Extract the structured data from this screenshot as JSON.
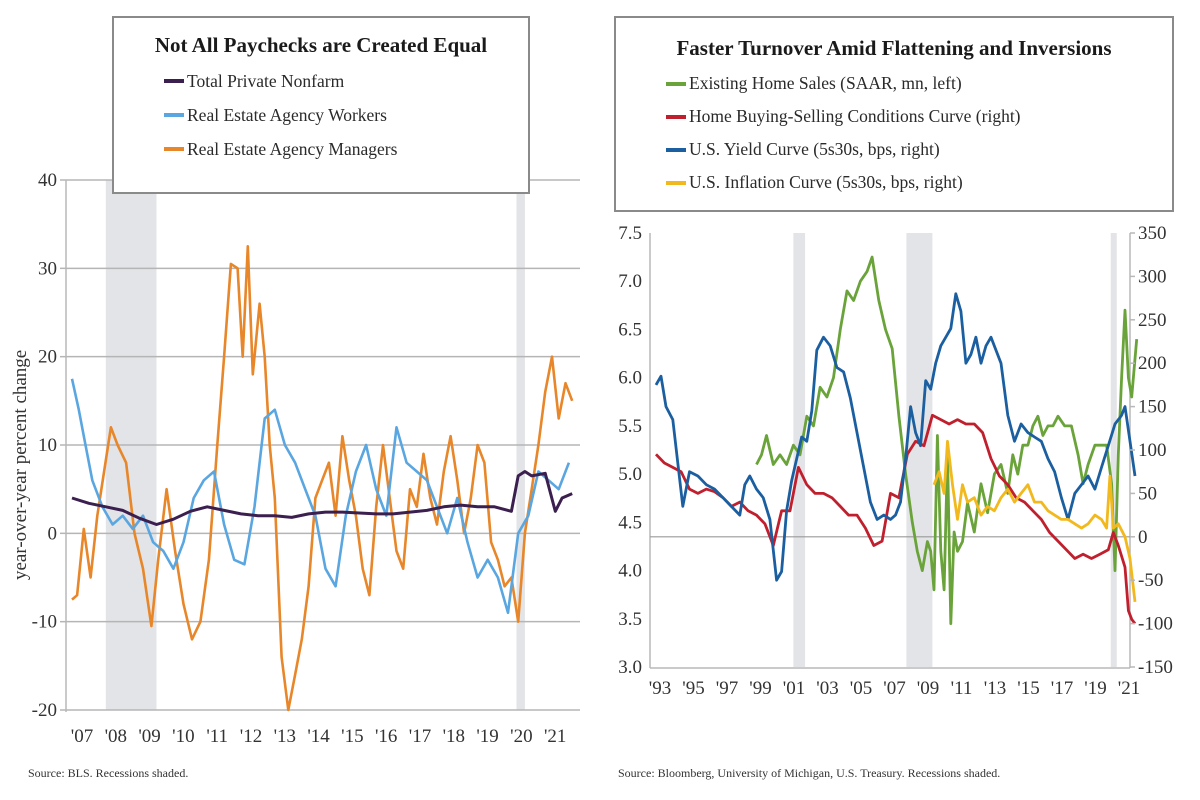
{
  "chart_data": [
    {
      "type": "line",
      "title": "Not All Paychecks are Created Equal",
      "xlabel": "",
      "ylabel": "year-over-year percent change",
      "ylim": [
        -20,
        40
      ],
      "yticks": [
        40,
        30,
        20,
        10,
        0,
        -10,
        -20
      ],
      "xlim": [
        2007.0,
        2021.9
      ],
      "xticks": [
        "'07",
        "'08",
        "'09",
        "'10",
        "'11",
        "'12",
        "'13",
        "'14",
        "'15",
        "'16",
        "'17",
        "'18",
        "'19",
        "'20",
        "'21"
      ],
      "grid": "horizontal",
      "legend_position": "top-center",
      "recessions": [
        [
          2008.0,
          2009.5
        ],
        [
          2020.15,
          2020.4
        ]
      ],
      "source": "Source: BLS. Recessions shaded.",
      "series": [
        {
          "name": "Total Private Nonfarm",
          "color": "#3b1f4f",
          "x": [
            2007.0,
            2007.5,
            2008.0,
            2008.5,
            2009.0,
            2009.5,
            2010.0,
            2010.5,
            2011.0,
            2011.5,
            2012.0,
            2012.5,
            2013.0,
            2013.5,
            2014.0,
            2014.5,
            2015.0,
            2015.5,
            2016.0,
            2016.5,
            2017.0,
            2017.5,
            2018.0,
            2018.5,
            2019.0,
            2019.5,
            2020.0,
            2020.2,
            2020.4,
            2020.6,
            2021.0,
            2021.3,
            2021.5,
            2021.8
          ],
          "values": [
            4.0,
            3.4,
            3.0,
            2.6,
            1.7,
            1.0,
            1.6,
            2.5,
            3.0,
            2.6,
            2.2,
            2.0,
            2.0,
            1.8,
            2.2,
            2.4,
            2.4,
            2.3,
            2.2,
            2.2,
            2.4,
            2.6,
            3.0,
            3.2,
            3.0,
            3.0,
            2.5,
            6.5,
            7.0,
            6.5,
            6.8,
            2.5,
            4.0,
            4.5
          ]
        },
        {
          "name": "Real Estate Agency Workers",
          "color": "#5aa6e0",
          "x": [
            2007.0,
            2007.2,
            2007.4,
            2007.6,
            2007.9,
            2008.2,
            2008.5,
            2008.8,
            2009.1,
            2009.4,
            2009.7,
            2010.0,
            2010.3,
            2010.6,
            2010.9,
            2011.2,
            2011.5,
            2011.8,
            2012.1,
            2012.4,
            2012.7,
            2013.0,
            2013.3,
            2013.6,
            2013.9,
            2014.2,
            2014.5,
            2014.8,
            2015.1,
            2015.4,
            2015.7,
            2016.0,
            2016.3,
            2016.6,
            2016.9,
            2017.2,
            2017.5,
            2017.8,
            2018.1,
            2018.4,
            2018.7,
            2019.0,
            2019.3,
            2019.6,
            2019.9,
            2020.2,
            2020.5,
            2020.8,
            2021.1,
            2021.4,
            2021.7
          ],
          "values": [
            17.5,
            14,
            10,
            6,
            3,
            1,
            2,
            0.5,
            2,
            -1,
            -2,
            -4,
            -1,
            4,
            6,
            7,
            1,
            -3,
            -3.5,
            3,
            13,
            14,
            10,
            8,
            5,
            2,
            -4,
            -6,
            2,
            7,
            10,
            5,
            2,
            12,
            8,
            7,
            6,
            3,
            0,
            4,
            -1,
            -5,
            -3,
            -5,
            -9,
            0,
            2,
            7,
            6,
            5,
            8
          ]
        },
        {
          "name": "Real Estate Agency Managers",
          "color": "#e8862a",
          "x": [
            2007.0,
            2007.15,
            2007.35,
            2007.55,
            2007.75,
            2007.95,
            2008.15,
            2008.35,
            2008.6,
            2008.85,
            2009.1,
            2009.35,
            2009.55,
            2009.8,
            2010.05,
            2010.3,
            2010.55,
            2010.8,
            2011.05,
            2011.3,
            2011.5,
            2011.7,
            2011.9,
            2012.05,
            2012.2,
            2012.35,
            2012.55,
            2012.7,
            2012.85,
            2013.0,
            2013.2,
            2013.4,
            2013.6,
            2013.8,
            2014.0,
            2014.2,
            2014.4,
            2014.6,
            2014.8,
            2015.0,
            2015.2,
            2015.4,
            2015.6,
            2015.8,
            2016.0,
            2016.2,
            2016.4,
            2016.6,
            2016.8,
            2017.0,
            2017.2,
            2017.4,
            2017.6,
            2017.8,
            2018.0,
            2018.2,
            2018.4,
            2018.6,
            2018.8,
            2019.0,
            2019.2,
            2019.4,
            2019.6,
            2019.8,
            2020.0,
            2020.2,
            2020.4,
            2020.6,
            2020.8,
            2021.0,
            2021.2,
            2021.4,
            2021.6,
            2021.8
          ],
          "values": [
            -7.5,
            -7,
            0.5,
            -5,
            2,
            7,
            12,
            10,
            8,
            0,
            -4,
            -10.5,
            -3,
            5,
            -2,
            -8,
            -12,
            -10,
            -3,
            10,
            20,
            30.5,
            30,
            20,
            32.5,
            18,
            26,
            20,
            10,
            4,
            -14,
            -20,
            -16,
            -12,
            -6,
            4,
            6,
            8,
            2,
            11,
            6,
            2,
            -4,
            -7,
            3,
            10,
            4,
            -2,
            -4,
            5,
            3,
            9,
            4,
            1,
            7,
            11,
            6,
            0,
            4,
            10,
            8,
            -1,
            -3,
            -6,
            -5,
            -10,
            0,
            5,
            10,
            16,
            20,
            13,
            17,
            15
          ]
        }
      ]
    },
    {
      "type": "line",
      "title": "Faster Turnover Amid Flattening and Inversions",
      "xlabel": "",
      "ylabel_left": "",
      "ylabel_right": "",
      "ylim_left": [
        3.0,
        7.5
      ],
      "ylim_right": [
        -150,
        350
      ],
      "yticks_left": [
        "7.5",
        "7.0",
        "6.5",
        "6.0",
        "5.5",
        "5.0",
        "4.5",
        "4.0",
        "3.5",
        "3.0"
      ],
      "yticks_right": [
        "350",
        "300",
        "250",
        "200",
        "150",
        "100",
        "50",
        "0",
        "-50",
        "-100",
        "-150"
      ],
      "xlim": [
        1993.0,
        2021.8
      ],
      "xticks": [
        "'93",
        "'95",
        "'97",
        "'99",
        "'01",
        "'03",
        "'05",
        "'07",
        "'09",
        "'11",
        "'13",
        "'15",
        "'17",
        "'19",
        "'21"
      ],
      "grid": "zero-line-right",
      "legend_position": "top-center",
      "recessions": [
        [
          2001.2,
          2001.9
        ],
        [
          2007.95,
          2009.5
        ],
        [
          2020.15,
          2020.4
        ]
      ],
      "source": "Source: Bloomberg, University of Michigan, U.S. Treasury. Recessions shaded.",
      "series": [
        {
          "name": "Existing Home Sales (SAAR, mn, left)",
          "axis": "left",
          "color": "#6aa33a",
          "x": [
            1999.0,
            1999.3,
            1999.6,
            2000.0,
            2000.4,
            2000.8,
            2001.2,
            2001.6,
            2002.0,
            2002.4,
            2002.8,
            2003.2,
            2003.6,
            2004.0,
            2004.4,
            2004.8,
            2005.2,
            2005.6,
            2005.9,
            2006.3,
            2006.7,
            2007.1,
            2007.5,
            2007.9,
            2008.3,
            2008.6,
            2008.9,
            2009.2,
            2009.4,
            2009.6,
            2009.8,
            2010.0,
            2010.2,
            2010.4,
            2010.6,
            2010.8,
            2011.0,
            2011.3,
            2011.6,
            2012.0,
            2012.4,
            2012.8,
            2013.2,
            2013.6,
            2014.0,
            2014.3,
            2014.6,
            2014.9,
            2015.2,
            2015.5,
            2015.8,
            2016.1,
            2016.4,
            2016.7,
            2017.0,
            2017.4,
            2017.8,
            2018.2,
            2018.5,
            2018.8,
            2019.2,
            2019.6,
            2019.9,
            2020.2,
            2020.4,
            2020.6,
            2020.8,
            2021.0,
            2021.2,
            2021.4,
            2021.7
          ],
          "values": [
            5.1,
            5.2,
            5.4,
            5.1,
            5.2,
            5.1,
            5.3,
            5.2,
            5.6,
            5.5,
            5.9,
            5.8,
            6.0,
            6.5,
            6.9,
            6.8,
            7.0,
            7.1,
            7.25,
            6.8,
            6.5,
            6.3,
            5.6,
            5.0,
            4.5,
            4.2,
            4.0,
            4.3,
            4.2,
            3.8,
            5.4,
            4.2,
            3.8,
            5.2,
            3.45,
            4.4,
            4.2,
            4.3,
            4.7,
            4.4,
            4.9,
            4.6,
            5.0,
            5.1,
            4.8,
            5.2,
            5.0,
            5.3,
            5.3,
            5.5,
            5.6,
            5.4,
            5.5,
            5.5,
            5.6,
            5.5,
            5.5,
            5.2,
            4.9,
            5.1,
            5.3,
            5.3,
            5.3,
            4.9,
            4.0,
            5.2,
            6.0,
            6.7,
            6.0,
            5.8,
            6.4
          ]
        },
        {
          "name": "Home Buying-Selling Conditions Curve (right)",
          "axis": "right",
          "color": "#c0202e",
          "x": [
            1993.0,
            1993.5,
            1994.0,
            1994.5,
            1995.0,
            1995.5,
            1996.0,
            1996.5,
            1997.0,
            1997.5,
            1998.0,
            1998.5,
            1999.0,
            1999.5,
            2000.0,
            2000.5,
            2001.0,
            2001.5,
            2002.0,
            2002.5,
            2003.0,
            2003.5,
            2004.0,
            2004.5,
            2005.0,
            2005.5,
            2006.0,
            2006.5,
            2007.0,
            2007.5,
            2008.0,
            2008.5,
            2009.0,
            2009.5,
            2010.0,
            2010.5,
            2011.0,
            2011.5,
            2012.0,
            2012.5,
            2013.0,
            2013.5,
            2014.0,
            2014.5,
            2015.0,
            2015.5,
            2016.0,
            2016.5,
            2017.0,
            2017.5,
            2018.0,
            2018.5,
            2019.0,
            2019.5,
            2020.0,
            2020.3,
            2020.6,
            2021.0,
            2021.2,
            2021.4,
            2021.6
          ],
          "values": [
            95,
            85,
            80,
            75,
            55,
            50,
            55,
            52,
            45,
            35,
            40,
            30,
            25,
            15,
            -10,
            30,
            30,
            80,
            60,
            50,
            50,
            45,
            35,
            25,
            25,
            10,
            -10,
            -5,
            50,
            45,
            95,
            110,
            105,
            140,
            135,
            130,
            135,
            130,
            130,
            120,
            90,
            70,
            60,
            45,
            40,
            30,
            20,
            5,
            -5,
            -15,
            -25,
            -20,
            -25,
            -20,
            -15,
            5,
            -10,
            -35,
            -85,
            -95,
            -100
          ]
        },
        {
          "name": "U.S. Yield Curve (5s30s, bps, right)",
          "axis": "right",
          "color": "#1b5fa0",
          "x": [
            1993.0,
            1993.3,
            1993.6,
            1994.0,
            1994.3,
            1994.6,
            1995.0,
            1995.5,
            1996.0,
            1996.5,
            1997.0,
            1997.5,
            1998.0,
            1998.3,
            1998.6,
            1999.0,
            1999.4,
            1999.8,
            2000.2,
            2000.5,
            2000.8,
            2001.1,
            2001.4,
            2001.7,
            2002.0,
            2002.3,
            2002.6,
            2003.0,
            2003.4,
            2003.8,
            2004.2,
            2004.6,
            2005.0,
            2005.4,
            2005.8,
            2006.2,
            2006.6,
            2007.0,
            2007.3,
            2007.6,
            2007.9,
            2008.2,
            2008.5,
            2008.8,
            2009.1,
            2009.4,
            2009.7,
            2010.0,
            2010.3,
            2010.6,
            2010.9,
            2011.2,
            2011.5,
            2011.8,
            2012.1,
            2012.4,
            2012.7,
            2013.0,
            2013.3,
            2013.6,
            2014.0,
            2014.4,
            2014.8,
            2015.2,
            2015.6,
            2016.0,
            2016.4,
            2016.8,
            2017.2,
            2017.6,
            2018.0,
            2018.4,
            2018.8,
            2019.2,
            2019.6,
            2020.0,
            2020.4,
            2020.8,
            2021.0,
            2021.3,
            2021.6
          ],
          "values": [
            175,
            185,
            150,
            135,
            85,
            35,
            75,
            70,
            60,
            55,
            45,
            35,
            25,
            60,
            70,
            55,
            45,
            20,
            -50,
            -40,
            30,
            65,
            90,
            115,
            110,
            145,
            215,
            230,
            220,
            195,
            190,
            160,
            120,
            80,
            40,
            20,
            25,
            20,
            25,
            40,
            90,
            150,
            120,
            105,
            180,
            170,
            200,
            220,
            230,
            240,
            280,
            260,
            200,
            210,
            230,
            200,
            220,
            230,
            215,
            200,
            140,
            110,
            130,
            120,
            115,
            110,
            90,
            75,
            45,
            20,
            50,
            60,
            70,
            55,
            80,
            105,
            130,
            140,
            150,
            110,
            70
          ]
        },
        {
          "name": "U.S. Inflation Curve (5s30s, bps, right)",
          "axis": "right",
          "color": "#f2b91e",
          "x": [
            2009.6,
            2009.9,
            2010.2,
            2010.4,
            2010.7,
            2011.0,
            2011.3,
            2011.6,
            2012.0,
            2012.4,
            2012.8,
            2013.2,
            2013.6,
            2014.0,
            2014.4,
            2014.8,
            2015.2,
            2015.6,
            2016.0,
            2016.4,
            2016.8,
            2017.2,
            2017.6,
            2018.0,
            2018.4,
            2018.8,
            2019.2,
            2019.6,
            2019.9,
            2020.1,
            2020.3,
            2020.6,
            2021.0,
            2021.3,
            2021.6
          ],
          "values": [
            60,
            75,
            50,
            110,
            60,
            20,
            60,
            40,
            45,
            25,
            35,
            30,
            45,
            55,
            40,
            50,
            60,
            40,
            40,
            30,
            25,
            20,
            20,
            15,
            10,
            15,
            25,
            20,
            10,
            70,
            10,
            15,
            0,
            -25,
            -75
          ]
        }
      ]
    }
  ]
}
